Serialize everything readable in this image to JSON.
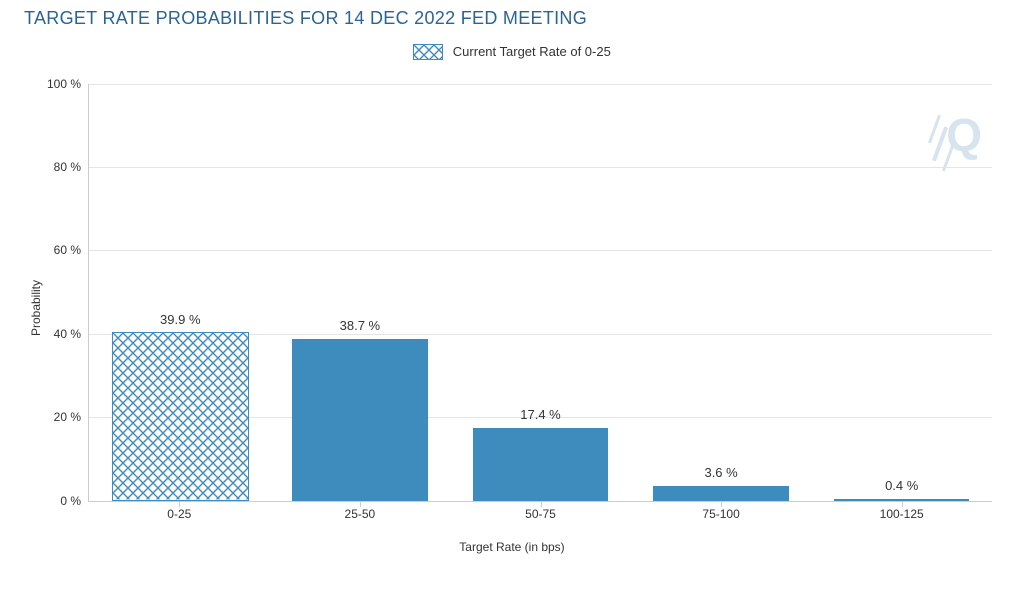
{
  "title": "TARGET RATE PROBABILITIES FOR 14 DEC 2022 FED MEETING",
  "legend": {
    "label": "Current Target Rate of 0-25"
  },
  "chart": {
    "type": "bar",
    "categories": [
      "0-25",
      "25-50",
      "50-75",
      "75-100",
      "100-125"
    ],
    "values": [
      39.9,
      38.7,
      17.4,
      3.6,
      0.4
    ],
    "value_labels": [
      "39.9 %",
      "38.7 %",
      "17.4 %",
      "3.6 %",
      "0.4 %"
    ],
    "current_index": 0,
    "bar_color": "#3e8bbd",
    "bar_border_color": "#3e8bbd",
    "hatch_color": "#3e8bbd",
    "hatch_bg": "#ffffff",
    "bar_width": 0.75,
    "ylabel": "Probability",
    "xlabel": "Target Rate (in bps)",
    "ylim": [
      0,
      100
    ],
    "ytick_step": 20,
    "ytick_suffix": " %",
    "grid_color": "#e5e5e5",
    "axis_color": "#cccccc",
    "background_color": "#ffffff",
    "label_fontsize": 12,
    "value_fontsize": 13,
    "title_color": "#2a6496",
    "title_fontsize": 18
  },
  "watermark": {
    "letter": "Q",
    "color": "#d7e4ee",
    "fontsize": 46
  }
}
